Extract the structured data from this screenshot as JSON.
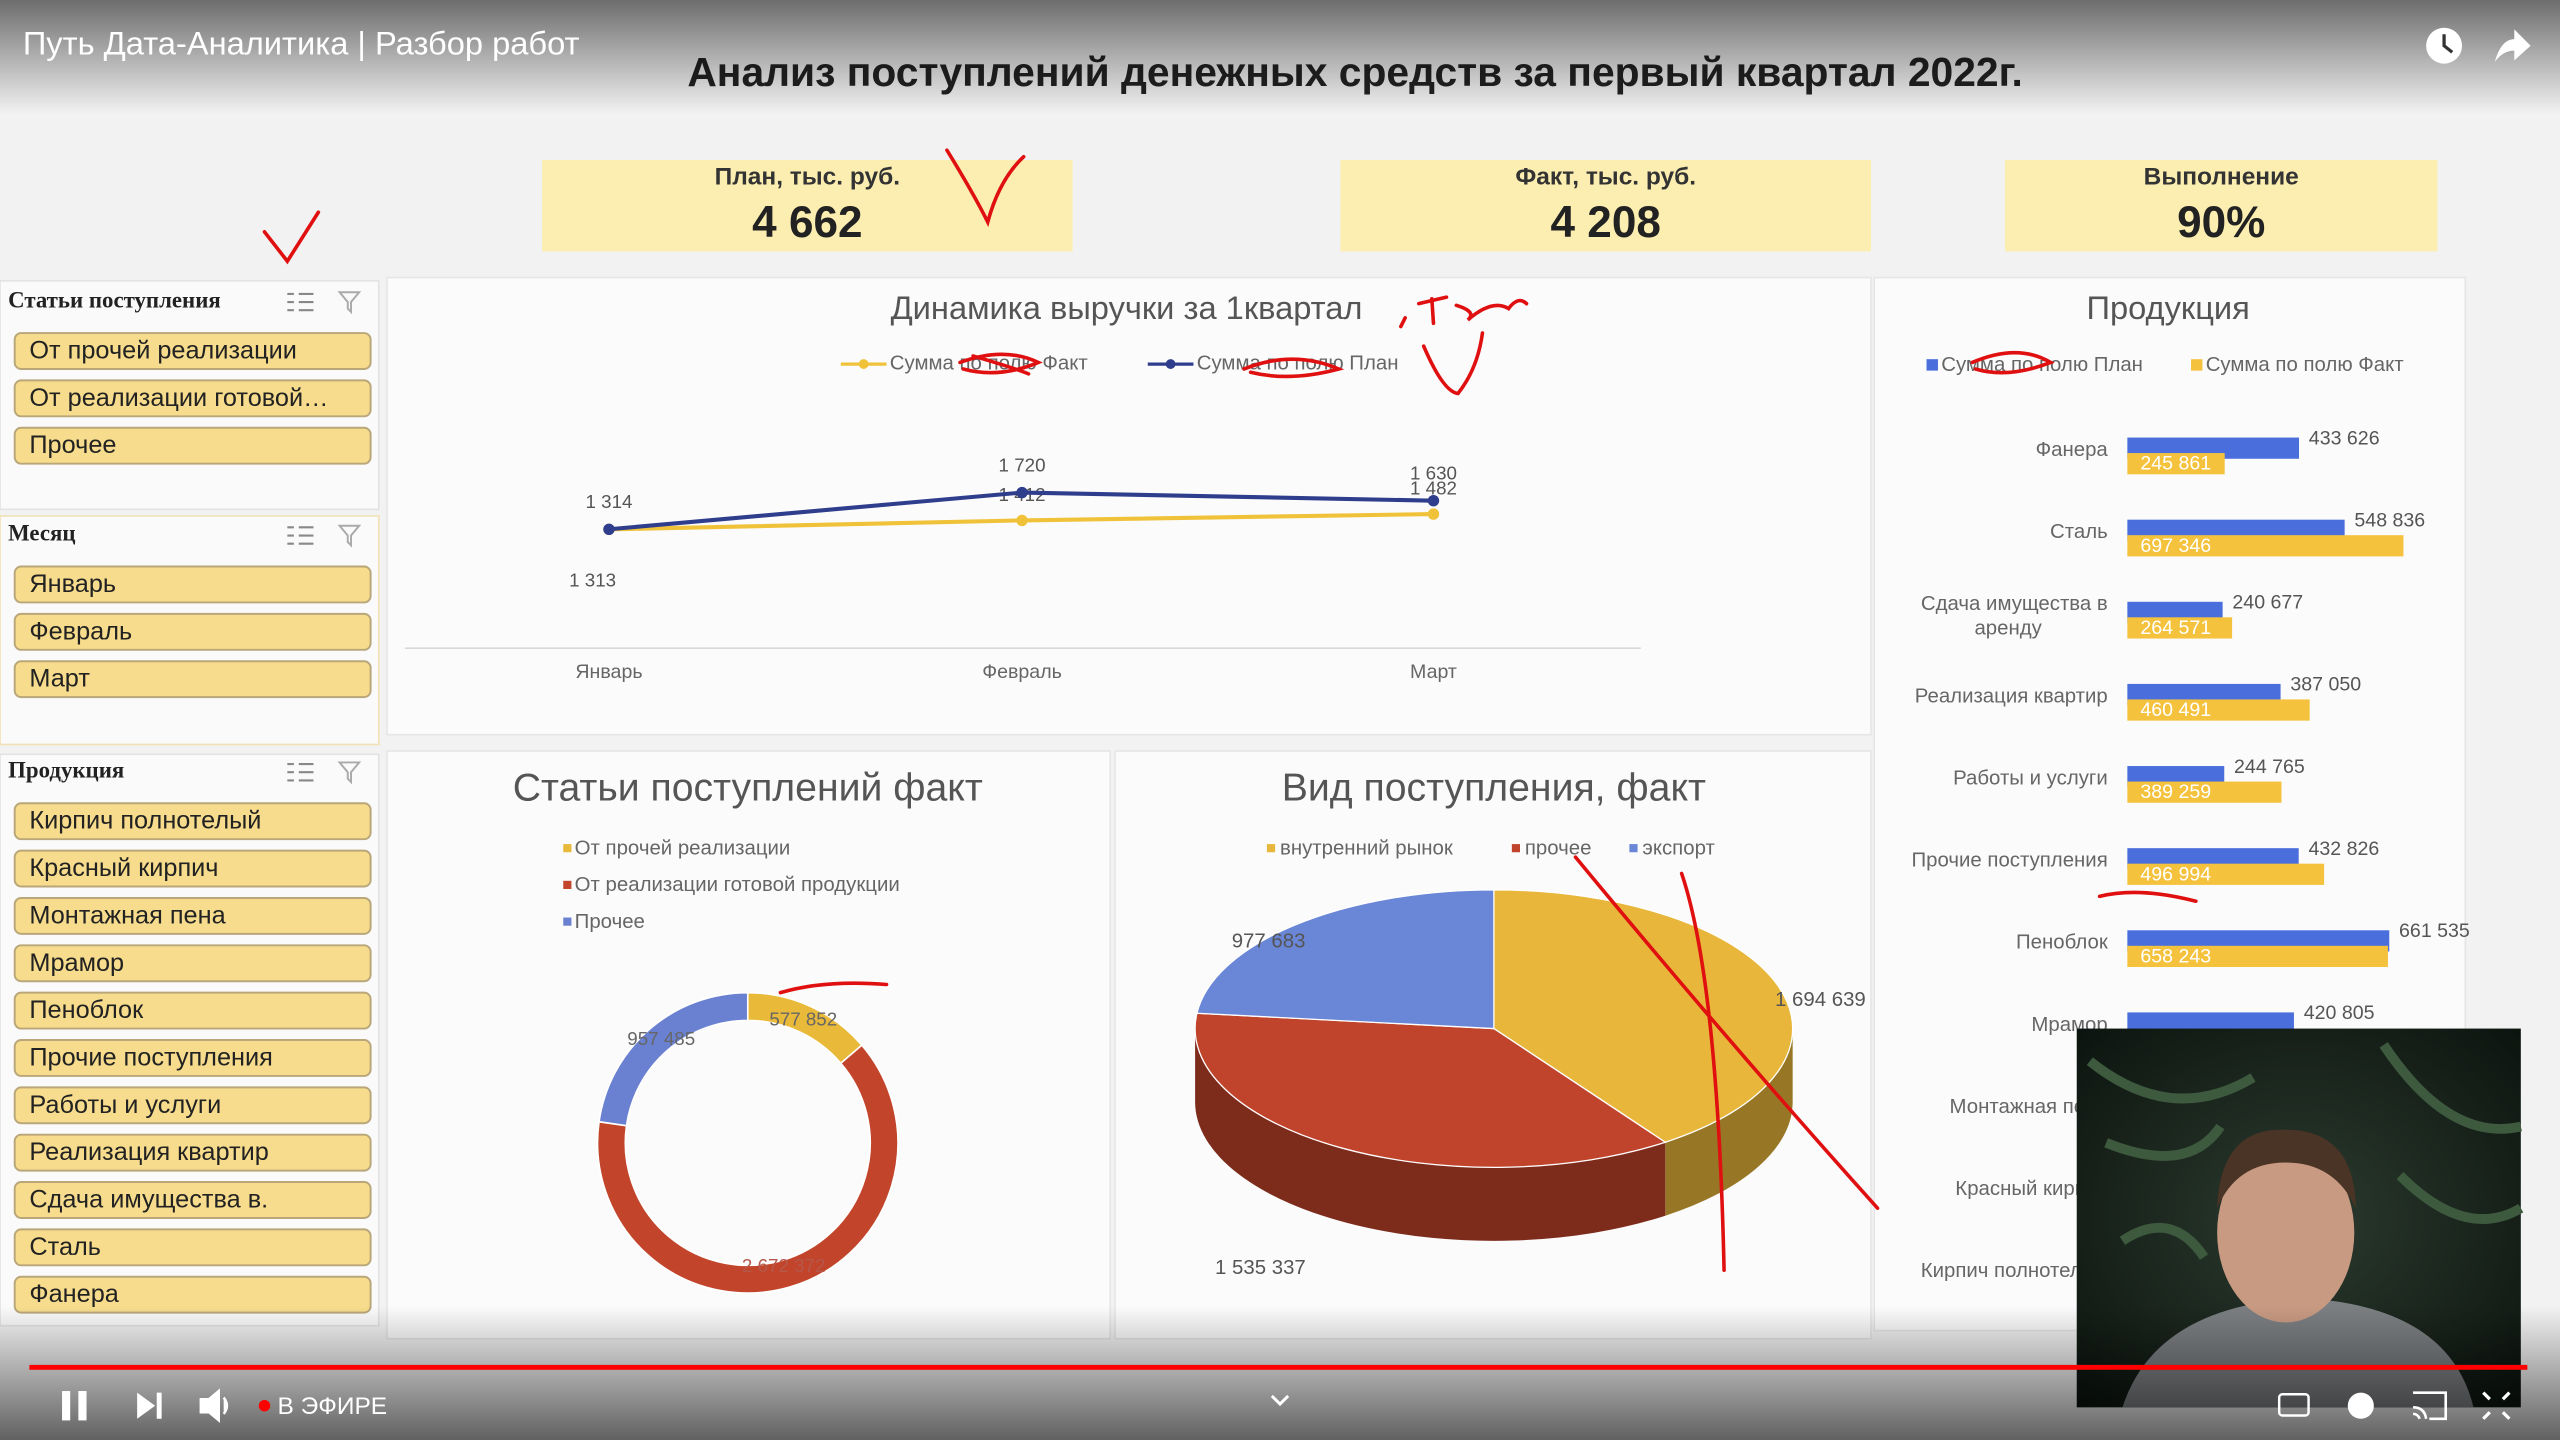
{
  "player": {
    "title": "Путь Дата-Аналитика | Разбор работ",
    "live": "В ЭФИРЕ"
  },
  "dashboard": {
    "title": "Анализ поступлений денежных средств за первый квартал 2022г.",
    "kpis": [
      {
        "label": "План, тыс. руб.",
        "value": "4 662"
      },
      {
        "label": "Факт, тыс. руб.",
        "value": "4 208"
      },
      {
        "label": "Выполнение",
        "value": "90%"
      }
    ]
  },
  "slicers": [
    {
      "title": "Статьи поступления",
      "items": [
        "От прочей реализации",
        "От реализации готовой…",
        "Прочее"
      ]
    },
    {
      "title": "Месяц",
      "items": [
        "Январь",
        "Февраль",
        "Март"
      ]
    },
    {
      "title": "Продукция",
      "items": [
        "Кирпич полнотелый",
        "Красный кирпич",
        "Монтажная пена",
        "Мрамор",
        "Пеноблок",
        "Прочие поступления",
        "Работы и услуги",
        "Реализация квартир",
        "Сдача имущества в.",
        "Сталь",
        "Фанера"
      ]
    }
  ],
  "chart_data": [
    {
      "type": "line",
      "title": "Динамика выручки за 1квартал",
      "categories": [
        "Январь",
        "Февраль",
        "Март"
      ],
      "series": [
        {
          "name": "Сумма по полю Факт",
          "color": "#f0c23a",
          "values": [
            1313,
            1412,
            1482
          ],
          "value_labels": [
            "1 313",
            "1 412",
            "1 482"
          ]
        },
        {
          "name": "Сумма по полю План",
          "color": "#2e3d8c",
          "values": [
            1314,
            1720,
            1630
          ],
          "value_labels": [
            "1 314",
            "1 720",
            "1 630"
          ]
        }
      ],
      "ylim": [
        0,
        2400
      ],
      "legend": "top"
    },
    {
      "type": "hbar",
      "title": "Продукция",
      "categories": [
        "Фанера",
        "Сталь",
        "Сдача имущества в аренду",
        "Реализация квартир",
        "Работы и услуги",
        "Прочие поступления",
        "Пеноблок",
        "Мрамор",
        "Монтажная пена",
        "Красный кирпич",
        "Кирпич полнотелый"
      ],
      "series": [
        {
          "name": "Сумма по полю План",
          "color": "#4a6fdc",
          "values": [
            433626,
            548836,
            240677,
            387050,
            244765,
            432826,
            661535,
            420805,
            null,
            null,
            null
          ],
          "value_labels": [
            "433 626",
            "548 836",
            "240 677",
            "387 050",
            "244 765",
            "432 826",
            "661 535",
            "420 805",
            null,
            null,
            null
          ]
        },
        {
          "name": "Сумма по полю Факт",
          "color": "#f5c23e",
          "values": [
            245861,
            697346,
            264571,
            460491,
            389259,
            496994,
            658243,
            null,
            null,
            null,
            null
          ],
          "value_labels": [
            "245 861",
            "697 346",
            "264 571",
            "460 491",
            "389 259",
            "496 994",
            "658 243",
            null,
            null,
            null,
            null
          ]
        }
      ],
      "xlim": [
        0,
        800000
      ],
      "legend": "top"
    },
    {
      "type": "donut",
      "title": "Статьи поступлений факт",
      "categories": [
        "От прочей реализации",
        "От реализации готовой продукции",
        "Прочее"
      ],
      "colors": [
        "#e9b93a",
        "#c2452b",
        "#6a80d0"
      ],
      "values": [
        577852,
        2672372,
        957485
      ],
      "value_labels": [
        "577 852",
        "2 672 372",
        "957 485"
      ]
    },
    {
      "type": "pie",
      "title": "Вид поступления, факт",
      "categories": [
        "внутренний рынок",
        "прочее",
        "экспорт"
      ],
      "colors": [
        "#e8b63a",
        "#c0432b",
        "#6a86d6"
      ],
      "values": [
        1694639,
        1535337,
        977683
      ],
      "value_labels": [
        "1 694 639",
        "1 535 337",
        "977 683"
      ]
    }
  ]
}
